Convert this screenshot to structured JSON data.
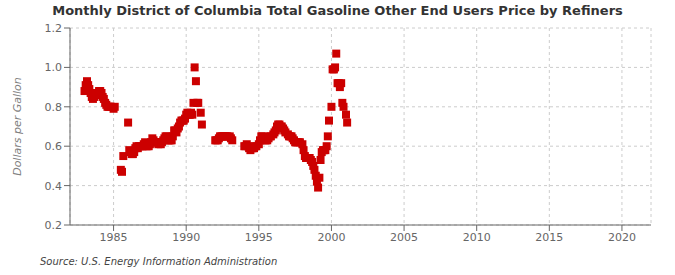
{
  "chart_data": {
    "type": "scatter",
    "title": "Monthly District of Columbia Total Gasoline Other End Users Price by Refiners",
    "y_label": "Dollars per Gallon",
    "annotations": [
      "Source: U.S. Energy Information Administration"
    ],
    "color": "#cc0000",
    "marker": "square",
    "grid": true,
    "xlim": [
      1982,
      2022
    ],
    "ylim": [
      0.2,
      1.2
    ],
    "xticks": [
      1985,
      1990,
      1995,
      2000,
      2005,
      2010,
      2015,
      2020
    ],
    "yticks": [
      0.2,
      0.4,
      0.6,
      0.8,
      {
        "value": 1,
        "label": "1.0"
      },
      1.2
    ],
    "x": [
      1983.0,
      1983.08,
      1983.17,
      1983.25,
      1983.33,
      1983.42,
      1983.5,
      1983.58,
      1983.67,
      1983.75,
      1983.83,
      1983.92,
      1984.0,
      1984.08,
      1984.17,
      1984.25,
      1984.33,
      1984.42,
      1984.5,
      1984.58,
      1984.67,
      1984.75,
      1984.83,
      1985.0,
      1985.08,
      1985.5,
      1985.58,
      1985.67,
      1986.0,
      1986.08,
      1986.17,
      1986.25,
      1986.33,
      1986.42,
      1986.5,
      1986.58,
      1986.67,
      1986.75,
      1986.83,
      1986.92,
      1987.0,
      1987.08,
      1987.17,
      1987.25,
      1987.33,
      1987.42,
      1987.5,
      1987.58,
      1987.67,
      1987.75,
      1987.83,
      1987.92,
      1988.0,
      1988.08,
      1988.17,
      1988.25,
      1988.33,
      1988.42,
      1988.5,
      1988.58,
      1988.67,
      1988.75,
      1988.83,
      1988.92,
      1989.0,
      1989.08,
      1989.17,
      1989.25,
      1989.33,
      1989.42,
      1989.5,
      1989.58,
      1989.67,
      1989.75,
      1989.83,
      1989.92,
      1990.0,
      1990.08,
      1990.17,
      1990.25,
      1990.33,
      1990.42,
      1990.5,
      1990.58,
      1990.67,
      1990.75,
      1990.83,
      1991.0,
      1991.08,
      1992.0,
      1992.08,
      1992.17,
      1992.25,
      1992.33,
      1992.42,
      1992.5,
      1992.58,
      1992.67,
      1992.75,
      1992.83,
      1993.0,
      1993.08,
      1993.17,
      1994.0,
      1994.08,
      1994.17,
      1994.25,
      1994.33,
      1994.42,
      1994.5,
      1994.58,
      1994.67,
      1994.75,
      1994.83,
      1995.0,
      1995.08,
      1995.17,
      1995.25,
      1995.33,
      1995.42,
      1995.5,
      1995.58,
      1995.67,
      1995.75,
      1995.83,
      1996.0,
      1996.08,
      1996.17,
      1996.25,
      1996.33,
      1996.42,
      1996.5,
      1996.58,
      1996.67,
      1996.75,
      1996.83,
      1997.0,
      1997.08,
      1997.17,
      1997.25,
      1997.33,
      1997.42,
      1997.5,
      1997.58,
      1997.67,
      1997.75,
      1997.83,
      1998.0,
      1998.08,
      1998.17,
      1998.25,
      1998.33,
      1998.42,
      1998.5,
      1998.58,
      1998.67,
      1998.75,
      1998.83,
      1998.92,
      1999.0,
      1999.08,
      1999.17,
      1999.25,
      1999.33,
      1999.42,
      1999.5,
      1999.58,
      1999.67,
      1999.75,
      1999.83,
      2000.0,
      2000.08,
      2000.17,
      2000.25,
      2000.33,
      2000.42,
      2000.5,
      2000.58,
      2000.67,
      2000.75,
      2000.83,
      2001.0,
      2001.08
    ],
    "values": [
      0.88,
      0.91,
      0.93,
      0.91,
      0.89,
      0.87,
      0.85,
      0.84,
      0.85,
      0.86,
      0.87,
      0.86,
      0.88,
      0.88,
      0.87,
      0.85,
      0.84,
      0.82,
      0.81,
      0.8,
      0.8,
      0.8,
      0.8,
      0.79,
      0.8,
      0.48,
      0.47,
      0.55,
      0.72,
      0.58,
      0.57,
      0.56,
      0.56,
      0.57,
      0.59,
      0.6,
      0.59,
      0.6,
      0.6,
      0.6,
      0.6,
      0.61,
      0.62,
      0.6,
      0.6,
      0.6,
      0.61,
      0.62,
      0.64,
      0.63,
      0.62,
      0.62,
      0.62,
      0.61,
      0.62,
      0.61,
      0.62,
      0.63,
      0.64,
      0.65,
      0.65,
      0.63,
      0.63,
      0.63,
      0.63,
      0.65,
      0.68,
      0.68,
      0.67,
      0.69,
      0.7,
      0.72,
      0.73,
      0.73,
      0.73,
      0.74,
      0.76,
      0.77,
      0.76,
      0.76,
      0.77,
      0.76,
      0.82,
      1.0,
      0.93,
      0.82,
      0.82,
      0.77,
      0.71,
      0.63,
      0.63,
      0.63,
      0.64,
      0.65,
      0.65,
      0.65,
      0.65,
      0.65,
      0.65,
      0.65,
      0.65,
      0.64,
      0.63,
      0.6,
      0.6,
      0.61,
      0.6,
      0.59,
      0.58,
      0.59,
      0.59,
      0.59,
      0.6,
      0.6,
      0.61,
      0.63,
      0.65,
      0.65,
      0.64,
      0.63,
      0.63,
      0.63,
      0.64,
      0.65,
      0.65,
      0.66,
      0.67,
      0.68,
      0.7,
      0.71,
      0.71,
      0.7,
      0.7,
      0.69,
      0.68,
      0.67,
      0.66,
      0.65,
      0.65,
      0.65,
      0.64,
      0.63,
      0.62,
      0.62,
      0.62,
      0.62,
      0.62,
      0.61,
      0.58,
      0.55,
      0.54,
      0.54,
      0.54,
      0.54,
      0.53,
      0.52,
      0.5,
      0.48,
      0.45,
      0.42,
      0.39,
      0.44,
      0.53,
      0.57,
      0.58,
      0.58,
      0.58,
      0.6,
      0.65,
      0.73,
      0.8,
      0.99,
      0.99,
      1.0,
      1.07,
      0.92,
      0.92,
      0.9,
      0.92,
      0.82,
      0.8,
      0.76,
      0.72
    ]
  }
}
